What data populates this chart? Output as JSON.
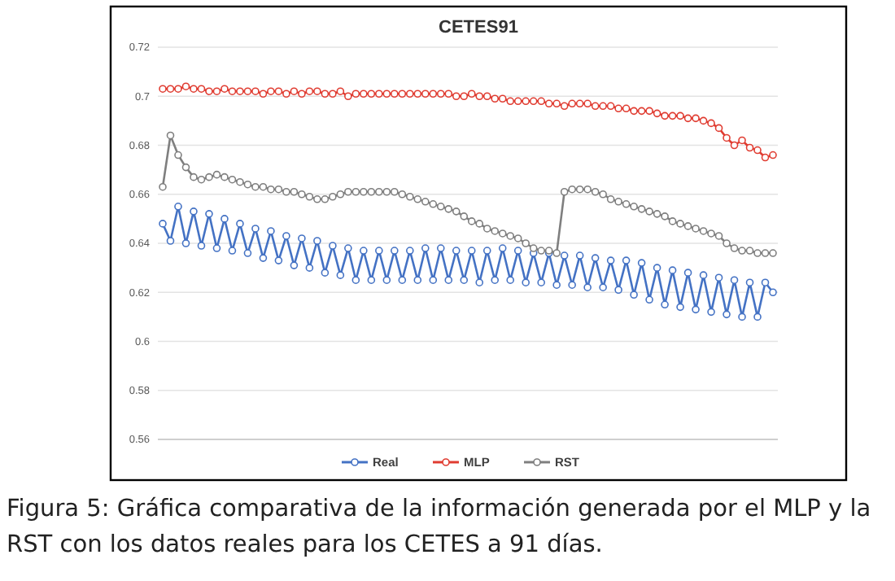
{
  "chart_data": {
    "type": "line",
    "title": "CETES91",
    "categories": [
      null,
      null,
      null,
      null,
      null,
      null,
      null,
      null,
      null,
      null,
      null,
      null,
      null,
      null,
      null,
      null,
      null,
      null,
      null,
      null,
      null,
      null,
      null,
      null,
      null,
      null,
      null,
      null,
      null,
      null,
      null,
      null,
      null,
      null,
      null,
      null,
      null,
      null,
      null,
      null,
      null,
      null,
      null,
      null,
      null,
      null,
      null,
      null,
      null,
      null,
      null,
      null,
      null,
      null,
      null,
      null,
      null,
      null,
      null,
      null,
      null,
      null,
      null,
      null,
      null,
      null,
      null,
      null,
      null,
      null,
      null,
      null,
      null,
      null,
      null,
      null,
      null,
      null,
      null,
      null
    ],
    "series": [
      {
        "name": "Real",
        "color": "#4472c4",
        "values": [
          0.648,
          0.641,
          0.655,
          0.64,
          0.653,
          0.639,
          0.652,
          0.638,
          0.65,
          0.637,
          0.648,
          0.636,
          0.646,
          0.634,
          0.645,
          0.633,
          0.643,
          0.631,
          0.642,
          0.63,
          0.641,
          0.628,
          0.639,
          0.627,
          0.638,
          0.625,
          0.637,
          0.625,
          0.637,
          0.625,
          0.637,
          0.625,
          0.637,
          0.625,
          0.638,
          0.625,
          0.638,
          0.625,
          0.637,
          0.625,
          0.637,
          0.624,
          0.637,
          0.625,
          0.638,
          0.625,
          0.637,
          0.624,
          0.636,
          0.624,
          0.636,
          0.623,
          0.635,
          0.623,
          0.635,
          0.622,
          0.634,
          0.622,
          0.633,
          0.621,
          0.633,
          0.619,
          0.632,
          0.617,
          0.63,
          0.615,
          0.629,
          0.614,
          0.628,
          0.613,
          0.627,
          0.612,
          0.626,
          0.611,
          0.625,
          0.61,
          0.624,
          0.61,
          0.624,
          0.62
        ]
      },
      {
        "name": "MLP",
        "color": "#e03c31",
        "values": [
          0.703,
          0.703,
          0.703,
          0.704,
          0.703,
          0.703,
          0.702,
          0.702,
          0.703,
          0.702,
          0.702,
          0.702,
          0.702,
          0.701,
          0.702,
          0.702,
          0.701,
          0.702,
          0.701,
          0.702,
          0.702,
          0.701,
          0.701,
          0.702,
          0.7,
          0.701,
          0.701,
          0.701,
          0.701,
          0.701,
          0.701,
          0.701,
          0.701,
          0.701,
          0.701,
          0.701,
          0.701,
          0.701,
          0.7,
          0.7,
          0.701,
          0.7,
          0.7,
          0.699,
          0.699,
          0.698,
          0.698,
          0.698,
          0.698,
          0.698,
          0.697,
          0.697,
          0.696,
          0.697,
          0.697,
          0.697,
          0.696,
          0.696,
          0.696,
          0.695,
          0.695,
          0.694,
          0.694,
          0.694,
          0.693,
          0.692,
          0.692,
          0.692,
          0.691,
          0.691,
          0.69,
          0.689,
          0.687,
          0.683,
          0.68,
          0.682,
          0.679,
          0.678,
          0.675,
          0.676
        ]
      },
      {
        "name": "RST",
        "color": "#7f7f7f",
        "values": [
          0.663,
          0.684,
          0.676,
          0.671,
          0.667,
          0.666,
          0.667,
          0.668,
          0.667,
          0.666,
          0.665,
          0.664,
          0.663,
          0.663,
          0.662,
          0.662,
          0.661,
          0.661,
          0.66,
          0.659,
          0.658,
          0.658,
          0.659,
          0.66,
          0.661,
          0.661,
          0.661,
          0.661,
          0.661,
          0.661,
          0.661,
          0.66,
          0.659,
          0.658,
          0.657,
          0.656,
          0.655,
          0.654,
          0.653,
          0.651,
          0.649,
          0.648,
          0.646,
          0.645,
          0.644,
          0.643,
          0.642,
          0.64,
          0.638,
          0.637,
          0.637,
          0.636,
          0.661,
          0.662,
          0.662,
          0.662,
          0.661,
          0.66,
          0.658,
          0.657,
          0.656,
          0.655,
          0.654,
          0.653,
          0.652,
          0.651,
          0.649,
          0.648,
          0.647,
          0.646,
          0.645,
          0.644,
          0.643,
          0.64,
          0.638,
          0.637,
          0.637,
          0.636,
          0.636,
          0.636
        ]
      }
    ],
    "ylim": [
      0.56,
      0.72
    ],
    "yticks": [
      0.56,
      0.58,
      0.6,
      0.62,
      0.64,
      0.66,
      0.68,
      0.7,
      0.72
    ],
    "grid": "y",
    "legend": "bottom",
    "marker": "circle",
    "line_style": "solid",
    "annotations": [
      "Figura 5: Gráfica comparativa de la información generada por el MLP y la RST con los datos reales para los CETES a 91 días."
    ]
  }
}
